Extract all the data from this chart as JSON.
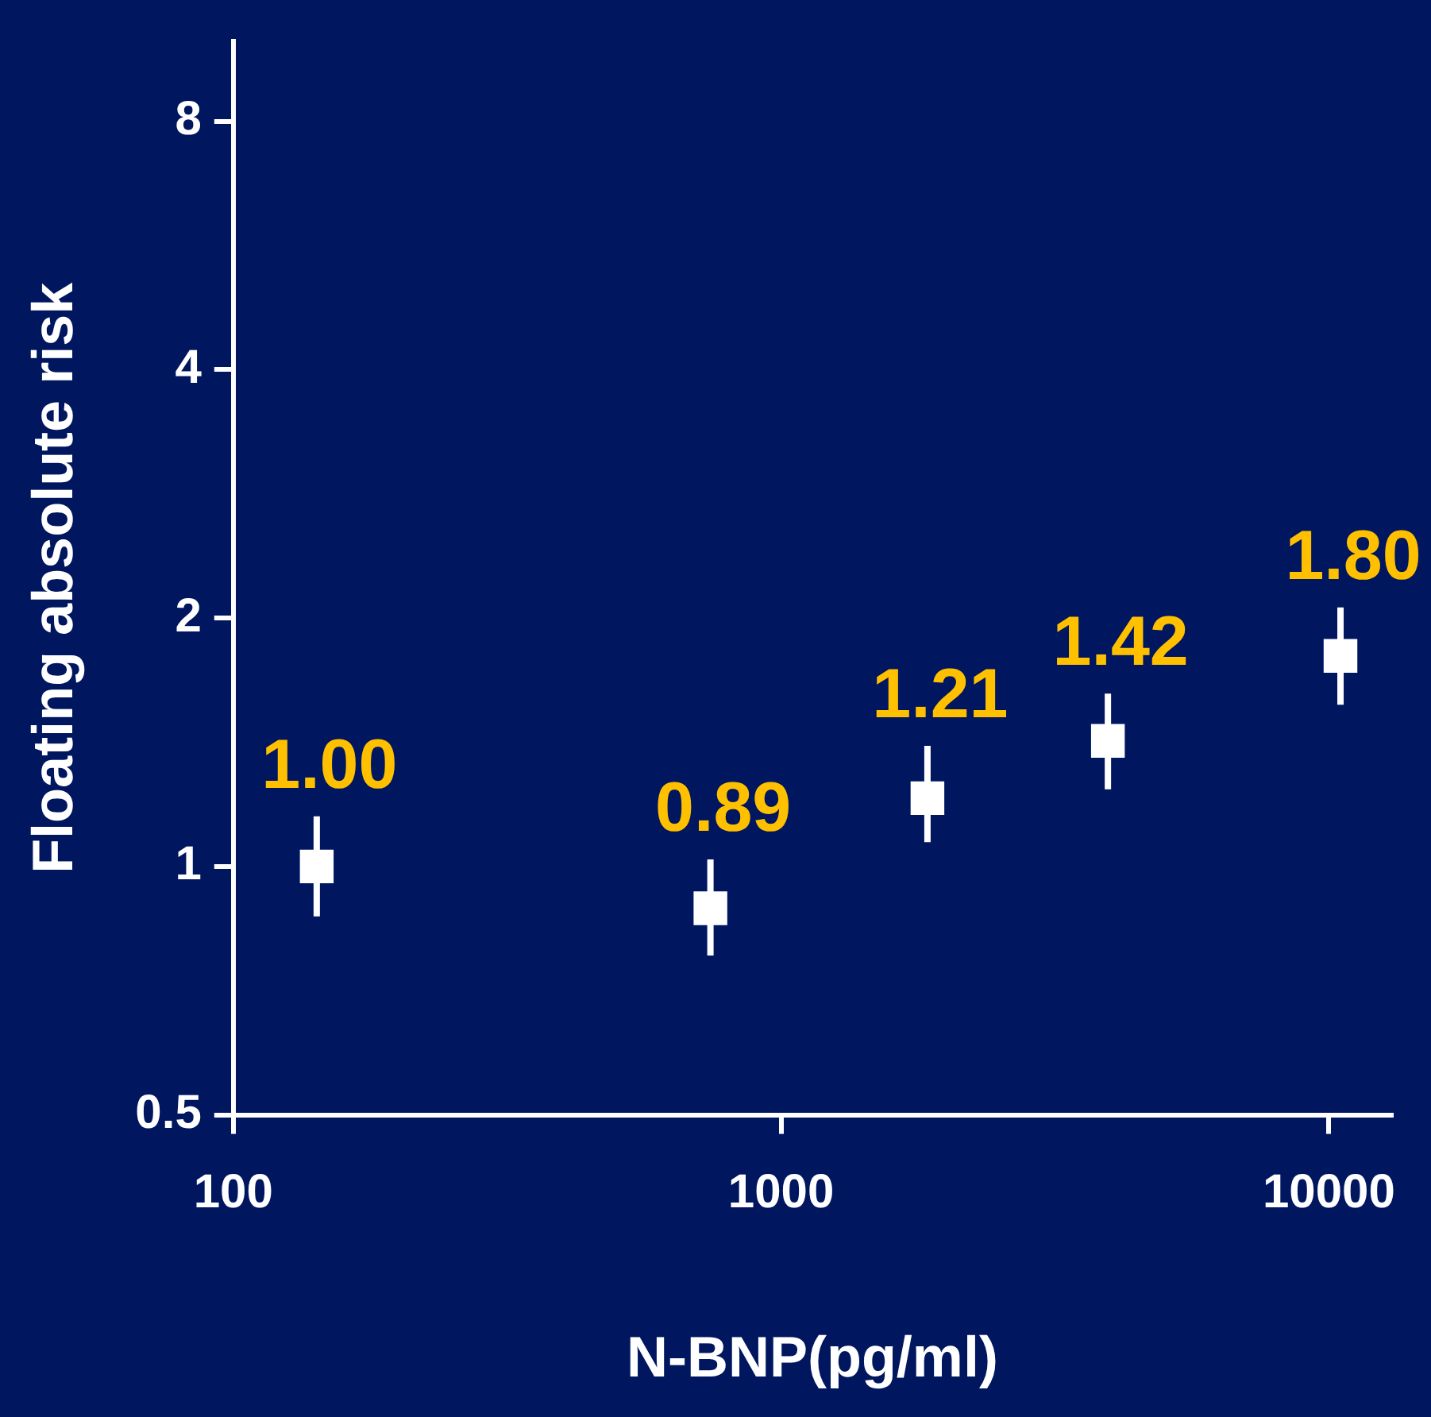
{
  "chart_data": {
    "type": "scatter",
    "xlabel": "N-BNP(pg/ml)",
    "ylabel": "Floating absolute risk",
    "x": [
      142,
      743,
      1850,
      3950,
      10500
    ],
    "values": [
      1.0,
      0.89,
      1.21,
      1.42,
      1.8
    ],
    "errors": [
      [
        0.87,
        1.15
      ],
      [
        0.78,
        1.02
      ],
      [
        1.07,
        1.4
      ],
      [
        1.24,
        1.62
      ],
      [
        1.57,
        2.06
      ]
    ],
    "value_labels": [
      "1.00",
      "0.89",
      "1.21",
      "1.42",
      "1.80"
    ],
    "color": "#ffffff",
    "marker": "square",
    "log": "xy",
    "grid": false,
    "legend": false,
    "xlim": [
      100,
      13000
    ],
    "xticks": [
      100,
      1000,
      10000
    ],
    "ylim": [
      0.5,
      10
    ],
    "yticks": [
      0.5,
      1,
      2,
      4,
      8
    ]
  }
}
